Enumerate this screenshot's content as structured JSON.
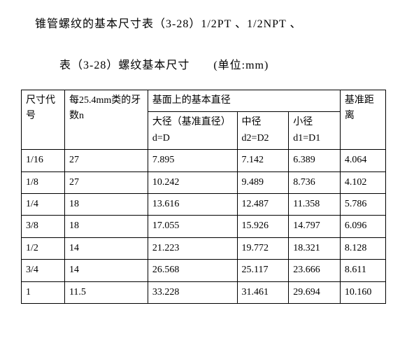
{
  "heading": "锥管螺纹的基本尺寸表（3-28）1/2PT 、1/2NPT 、",
  "subtitle": "表（3-28）螺纹基本尺寸  (单位:mm)",
  "headers": {
    "size_code": "尺寸代号",
    "threads_per": "每25.4mm类的牙数n",
    "basic_diam_group": "基面上的基本直径",
    "major_diam": "大径（基准直径）d=D",
    "pitch_diam": "中径d2=D2",
    "minor_diam": "小径d1=D1",
    "ref_distance": "基准距离"
  },
  "rows": [
    {
      "c0": "1/16",
      "c1": "27",
      "c2": "7.895",
      "c3": "7.142",
      "c4": "6.389",
      "c5": "4.064"
    },
    {
      "c0": "1/8",
      "c1": "27",
      "c2": "10.242",
      "c3": "9.489",
      "c4": "8.736",
      "c5": "4.102"
    },
    {
      "c0": "1/4",
      "c1": "18",
      "c2": "13.616",
      "c3": "12.487",
      "c4": "11.358",
      "c5": "5.786"
    },
    {
      "c0": "3/8",
      "c1": "18",
      "c2": "17.055",
      "c3": "15.926",
      "c4": "14.797",
      "c5": "6.096"
    },
    {
      "c0": "1/2",
      "c1": "14",
      "c2": "21.223",
      "c3": "19.772",
      "c4": "18.321",
      "c5": "8.128"
    },
    {
      "c0": "3/4",
      "c1": "14",
      "c2": "26.568",
      "c3": "25.117",
      "c4": "23.666",
      "c5": "8.611"
    },
    {
      "c0": "1",
      "c1": "11.5",
      "c2": "33.228",
      "c3": "31.461",
      "c4": "29.694",
      "c5": "10.160"
    }
  ],
  "colors": {
    "background": "#ffffff",
    "text": "#000000",
    "border": "#000000"
  },
  "table_style": {
    "font_family": "SimSun",
    "header_fontsize": 14,
    "body_fontsize": 14
  }
}
